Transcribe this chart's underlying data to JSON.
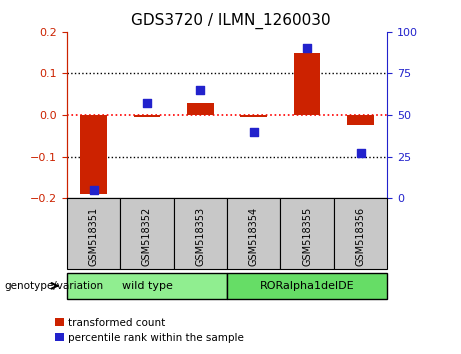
{
  "title": "GDS3720 / ILMN_1260030",
  "samples": [
    "GSM518351",
    "GSM518352",
    "GSM518353",
    "GSM518354",
    "GSM518355",
    "GSM518356"
  ],
  "transformed_count": [
    -0.19,
    -0.005,
    0.03,
    -0.005,
    0.148,
    -0.025
  ],
  "percentile_rank": [
    5,
    57,
    65,
    40,
    90,
    27
  ],
  "groups": [
    {
      "label": "wild type",
      "indices": [
        0,
        1,
        2
      ],
      "color": "#90EE90"
    },
    {
      "label": "RORalpha1delDE",
      "indices": [
        3,
        4,
        5
      ],
      "color": "#66DD66"
    }
  ],
  "ylim_left": [
    -0.2,
    0.2
  ],
  "ylim_right": [
    0,
    100
  ],
  "yticks_left": [
    -0.2,
    -0.1,
    0.0,
    0.1,
    0.2
  ],
  "yticks_right": [
    0,
    25,
    50,
    75,
    100
  ],
  "bar_color": "#CC2200",
  "dot_color": "#2222CC",
  "legend_labels": [
    "transformed count",
    "percentile rank within the sample"
  ],
  "background_color": "#ffffff",
  "left_axis_color": "#CC2200",
  "right_axis_color": "#2222CC",
  "sample_box_color": "#C8C8C8",
  "label_fontsize": 7.5,
  "title_fontsize": 11
}
